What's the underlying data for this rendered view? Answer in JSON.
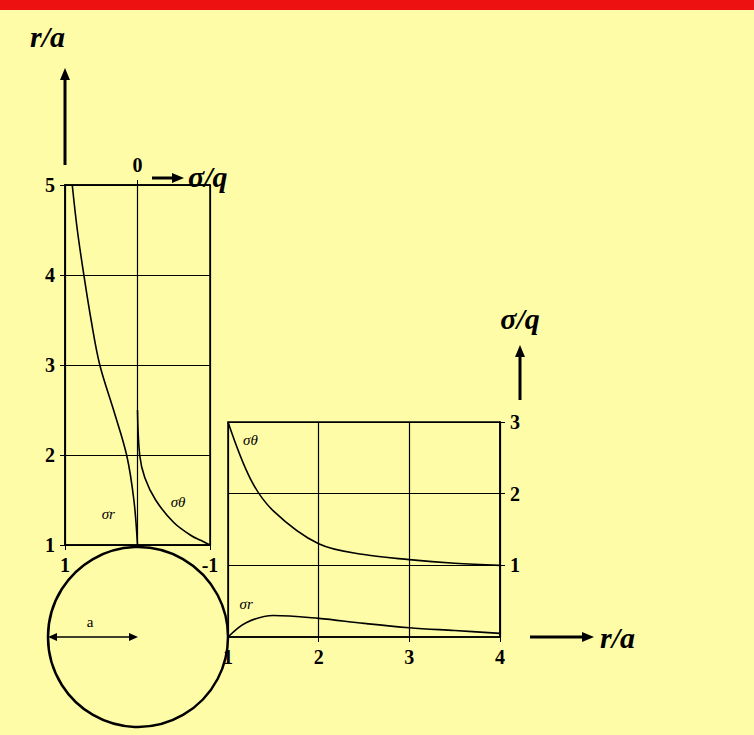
{
  "chart_data": [
    {
      "type": "line",
      "x_label": "σ/q",
      "y_label": "r/a",
      "xlim": [
        1,
        -1
      ],
      "xticks": [
        1,
        0,
        -1
      ],
      "ylim": [
        1,
        5
      ],
      "yticks": [
        1,
        2,
        3,
        4,
        5
      ],
      "grid": true,
      "series": [
        {
          "name": "σr",
          "color": "#000000",
          "x": [
            0,
            0.05,
            0.15,
            0.33,
            0.52,
            0.64,
            0.74,
            0.83,
            0.9
          ],
          "y": [
            1,
            1.5,
            2,
            2.5,
            3,
            3.5,
            4,
            4.5,
            5
          ]
        },
        {
          "name": "σθ",
          "color": "#000000",
          "x": [
            -1,
            -0.88,
            -0.75,
            -0.5,
            -0.25,
            -0.1,
            -0.03,
            0
          ],
          "y": [
            1,
            1.05,
            1.1,
            1.25,
            1.5,
            1.75,
            2,
            2.5
          ]
        }
      ],
      "annotations": [
        {
          "text": "a"
        }
      ]
    },
    {
      "type": "line",
      "x_label": "r/a",
      "y_label": "σ/q",
      "xlim": [
        1,
        4
      ],
      "xticks": [
        1,
        2,
        3,
        4
      ],
      "ylim": [
        0,
        3
      ],
      "yticks": [
        1,
        2,
        3
      ],
      "grid": true,
      "series": [
        {
          "name": "σθ",
          "color": "#000000",
          "x": [
            1,
            1.25,
            1.5,
            2,
            2.5,
            3,
            3.5,
            4
          ],
          "y": [
            3,
            2.2,
            1.76,
            1.3,
            1.15,
            1.08,
            1.03,
            1.0
          ]
        },
        {
          "name": "σr",
          "color": "#000000",
          "x": [
            1,
            1.2,
            1.5,
            2,
            2.5,
            3,
            3.5,
            4
          ],
          "y": [
            0,
            0.2,
            0.3,
            0.26,
            0.19,
            0.13,
            0.09,
            0.05
          ]
        }
      ]
    }
  ]
}
